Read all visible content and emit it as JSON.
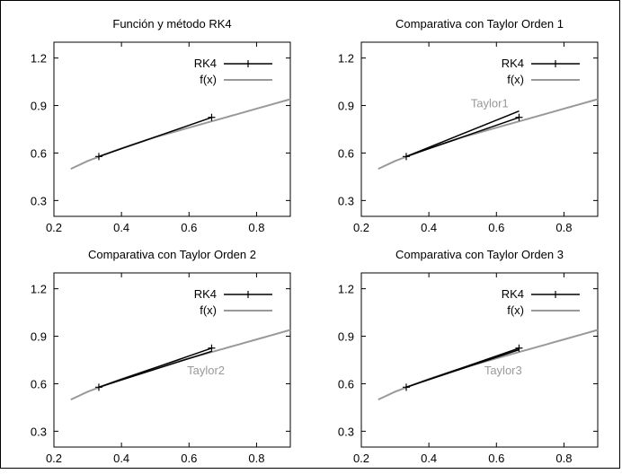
{
  "chart_data": [
    {
      "type": "line",
      "title": "Función y método RK4",
      "xlim": [
        0.2,
        0.9
      ],
      "ylim": [
        0.2,
        1.3
      ],
      "xticks": [
        0.2,
        0.4,
        0.6,
        0.8
      ],
      "yticks": [
        0.3,
        0.6,
        0.9,
        1.2
      ],
      "grid": false,
      "legend_position": "top-right",
      "series": [
        {
          "name": "RK4",
          "color": "#000000",
          "markers": "plus",
          "points": [
            [
              0.333,
              0.578
            ],
            [
              0.667,
              0.825
            ]
          ]
        },
        {
          "name": "f(x)",
          "color": "#999999",
          "markers": "none",
          "points": [
            [
              0.25,
              0.5
            ],
            [
              0.3,
              0.55
            ],
            [
              0.35,
              0.59
            ],
            [
              0.4,
              0.63
            ],
            [
              0.45,
              0.665
            ],
            [
              0.5,
              0.7
            ],
            [
              0.55,
              0.73
            ],
            [
              0.6,
              0.76
            ],
            [
              0.65,
              0.79
            ],
            [
              0.7,
              0.82
            ],
            [
              0.75,
              0.85
            ],
            [
              0.8,
              0.88
            ],
            [
              0.85,
              0.91
            ],
            [
              0.9,
              0.94
            ]
          ]
        }
      ],
      "annotations": []
    },
    {
      "type": "line",
      "title": "Comparativa con Taylor Orden 1",
      "xlim": [
        0.2,
        0.9
      ],
      "ylim": [
        0.2,
        1.3
      ],
      "xticks": [
        0.2,
        0.4,
        0.6,
        0.8
      ],
      "yticks": [
        0.3,
        0.6,
        0.9,
        1.2
      ],
      "grid": false,
      "legend_position": "top-right",
      "series": [
        {
          "name": "RK4",
          "color": "#000000",
          "markers": "plus",
          "points": [
            [
              0.333,
              0.578
            ],
            [
              0.667,
              0.825
            ]
          ]
        },
        {
          "name": "f(x)",
          "color": "#999999",
          "markers": "none",
          "points": [
            [
              0.25,
              0.5
            ],
            [
              0.3,
              0.55
            ],
            [
              0.35,
              0.59
            ],
            [
              0.4,
              0.63
            ],
            [
              0.45,
              0.665
            ],
            [
              0.5,
              0.7
            ],
            [
              0.55,
              0.73
            ],
            [
              0.6,
              0.76
            ],
            [
              0.65,
              0.79
            ],
            [
              0.7,
              0.82
            ],
            [
              0.75,
              0.85
            ],
            [
              0.8,
              0.88
            ],
            [
              0.85,
              0.91
            ],
            [
              0.9,
              0.94
            ]
          ]
        },
        {
          "name": "",
          "color": "#000000",
          "markers": "none",
          "points": [
            [
              0.333,
              0.578
            ],
            [
              0.667,
              0.865
            ]
          ]
        }
      ],
      "annotations": [
        {
          "text": "Taylor1",
          "x": 0.58,
          "y": 0.89
        }
      ]
    },
    {
      "type": "line",
      "title": "Comparativa con Taylor Orden 2",
      "xlim": [
        0.2,
        0.9
      ],
      "ylim": [
        0.2,
        1.3
      ],
      "xticks": [
        0.2,
        0.4,
        0.6,
        0.8
      ],
      "yticks": [
        0.3,
        0.6,
        0.9,
        1.2
      ],
      "grid": false,
      "legend_position": "top-right",
      "series": [
        {
          "name": "RK4",
          "color": "#000000",
          "markers": "plus",
          "points": [
            [
              0.333,
              0.578
            ],
            [
              0.667,
              0.825
            ]
          ]
        },
        {
          "name": "f(x)",
          "color": "#999999",
          "markers": "none",
          "points": [
            [
              0.25,
              0.5
            ],
            [
              0.3,
              0.55
            ],
            [
              0.35,
              0.59
            ],
            [
              0.4,
              0.63
            ],
            [
              0.45,
              0.665
            ],
            [
              0.5,
              0.7
            ],
            [
              0.55,
              0.73
            ],
            [
              0.6,
              0.76
            ],
            [
              0.65,
              0.79
            ],
            [
              0.7,
              0.82
            ],
            [
              0.75,
              0.85
            ],
            [
              0.8,
              0.88
            ],
            [
              0.85,
              0.91
            ],
            [
              0.9,
              0.94
            ]
          ]
        },
        {
          "name": "",
          "color": "#000000",
          "markers": "none",
          "points": [
            [
              0.333,
              0.578
            ],
            [
              0.667,
              0.805
            ]
          ]
        }
      ],
      "annotations": [
        {
          "text": "Taylor2",
          "x": 0.65,
          "y": 0.66
        }
      ]
    },
    {
      "type": "line",
      "title": "Comparativa con Taylor Orden 3",
      "xlim": [
        0.2,
        0.9
      ],
      "ylim": [
        0.2,
        1.3
      ],
      "xticks": [
        0.2,
        0.4,
        0.6,
        0.8
      ],
      "yticks": [
        0.3,
        0.6,
        0.9,
        1.2
      ],
      "grid": false,
      "legend_position": "top-right",
      "series": [
        {
          "name": "RK4",
          "color": "#000000",
          "markers": "plus",
          "points": [
            [
              0.333,
              0.578
            ],
            [
              0.667,
              0.825
            ]
          ]
        },
        {
          "name": "f(x)",
          "color": "#999999",
          "markers": "none",
          "points": [
            [
              0.25,
              0.5
            ],
            [
              0.3,
              0.55
            ],
            [
              0.35,
              0.59
            ],
            [
              0.4,
              0.63
            ],
            [
              0.45,
              0.665
            ],
            [
              0.5,
              0.7
            ],
            [
              0.55,
              0.73
            ],
            [
              0.6,
              0.76
            ],
            [
              0.65,
              0.79
            ],
            [
              0.7,
              0.82
            ],
            [
              0.75,
              0.85
            ],
            [
              0.8,
              0.88
            ],
            [
              0.85,
              0.91
            ],
            [
              0.9,
              0.94
            ]
          ]
        },
        {
          "name": "",
          "color": "#000000",
          "markers": "none",
          "points": [
            [
              0.333,
              0.578
            ],
            [
              0.667,
              0.815
            ]
          ]
        }
      ],
      "annotations": [
        {
          "text": "Taylor3",
          "x": 0.62,
          "y": 0.66
        }
      ]
    }
  ]
}
